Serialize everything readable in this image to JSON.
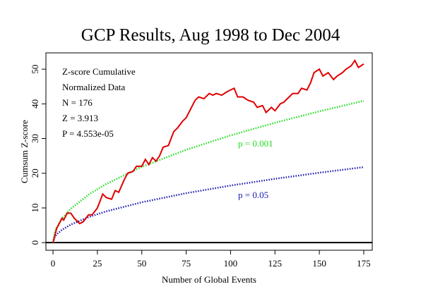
{
  "chart_data": {
    "type": "line",
    "title": "GCP Results, Aug 1998 to Dec 2004",
    "xlabel": "Number of Global Events",
    "ylabel": "Cumsum Z-score",
    "annotations": [
      "Z-score Cumulative",
      "Normalized Data",
      "N = 176",
      "Z = 3.913",
      "P = 4.553e-05"
    ],
    "xlim": [
      -4,
      179.8
    ],
    "ylim": [
      -2.2,
      54.7
    ],
    "xticks": [
      0,
      25,
      50,
      75,
      100,
      125,
      150,
      175
    ],
    "yticks": [
      0,
      10,
      20,
      30,
      40,
      50
    ],
    "reference_line": 0,
    "series": [
      {
        "color": "#e00000",
        "x": [
          0,
          2,
          4,
          5,
          6,
          8,
          10,
          12,
          15,
          17,
          20,
          22,
          25,
          28,
          30,
          33,
          35,
          37,
          40,
          42,
          45,
          47,
          50,
          52,
          54,
          56,
          58,
          60,
          62,
          65,
          68,
          70,
          73,
          75,
          78,
          80,
          82,
          85,
          88,
          90,
          92,
          95,
          98,
          100,
          102,
          104,
          107,
          110,
          113,
          115,
          118,
          120,
          123,
          125,
          128,
          130,
          133,
          135,
          138,
          140,
          143,
          145,
          147,
          150,
          152,
          155,
          158,
          160,
          163,
          165,
          168,
          170,
          172,
          175
        ],
        "values": [
          0,
          4,
          6,
          7,
          6.5,
          8.5,
          8.5,
          7,
          5.5,
          6,
          8,
          8,
          10,
          14,
          13,
          12.5,
          15,
          14.5,
          18,
          20,
          20.5,
          22,
          22,
          24,
          22.5,
          24.5,
          23.5,
          25,
          27.5,
          28,
          32,
          33,
          35,
          36,
          39,
          41,
          42,
          41.5,
          43,
          42.5,
          43,
          42.5,
          43.5,
          44,
          44.5,
          42,
          42,
          41,
          40.5,
          39,
          39.5,
          37.5,
          39,
          38,
          40,
          40.5,
          42,
          43,
          43,
          44.5,
          44,
          46,
          49,
          50,
          48,
          49,
          47,
          48,
          49,
          50,
          51,
          52.5,
          50.5,
          51.5
        ]
      },
      {
        "name": "p = 0.001",
        "color": "#22dd22",
        "dashed": true,
        "x": [
          0,
          1,
          2,
          5,
          10,
          20,
          30,
          50,
          75,
          100,
          125,
          150,
          175
        ],
        "values": [
          0,
          3.09,
          4.37,
          6.91,
          9.77,
          13.82,
          16.92,
          21.85,
          26.76,
          30.9,
          34.55,
          37.84,
          40.88
        ]
      },
      {
        "name": "p = 0.05",
        "color": "#1a1ab0",
        "dashed": true,
        "x": [
          0,
          1,
          2,
          5,
          10,
          20,
          30,
          50,
          75,
          100,
          125,
          150,
          175
        ],
        "values": [
          0,
          1.65,
          2.33,
          3.68,
          5.2,
          7.36,
          9.01,
          11.63,
          14.25,
          16.45,
          18.39,
          20.15,
          21.76
        ]
      }
    ]
  }
}
